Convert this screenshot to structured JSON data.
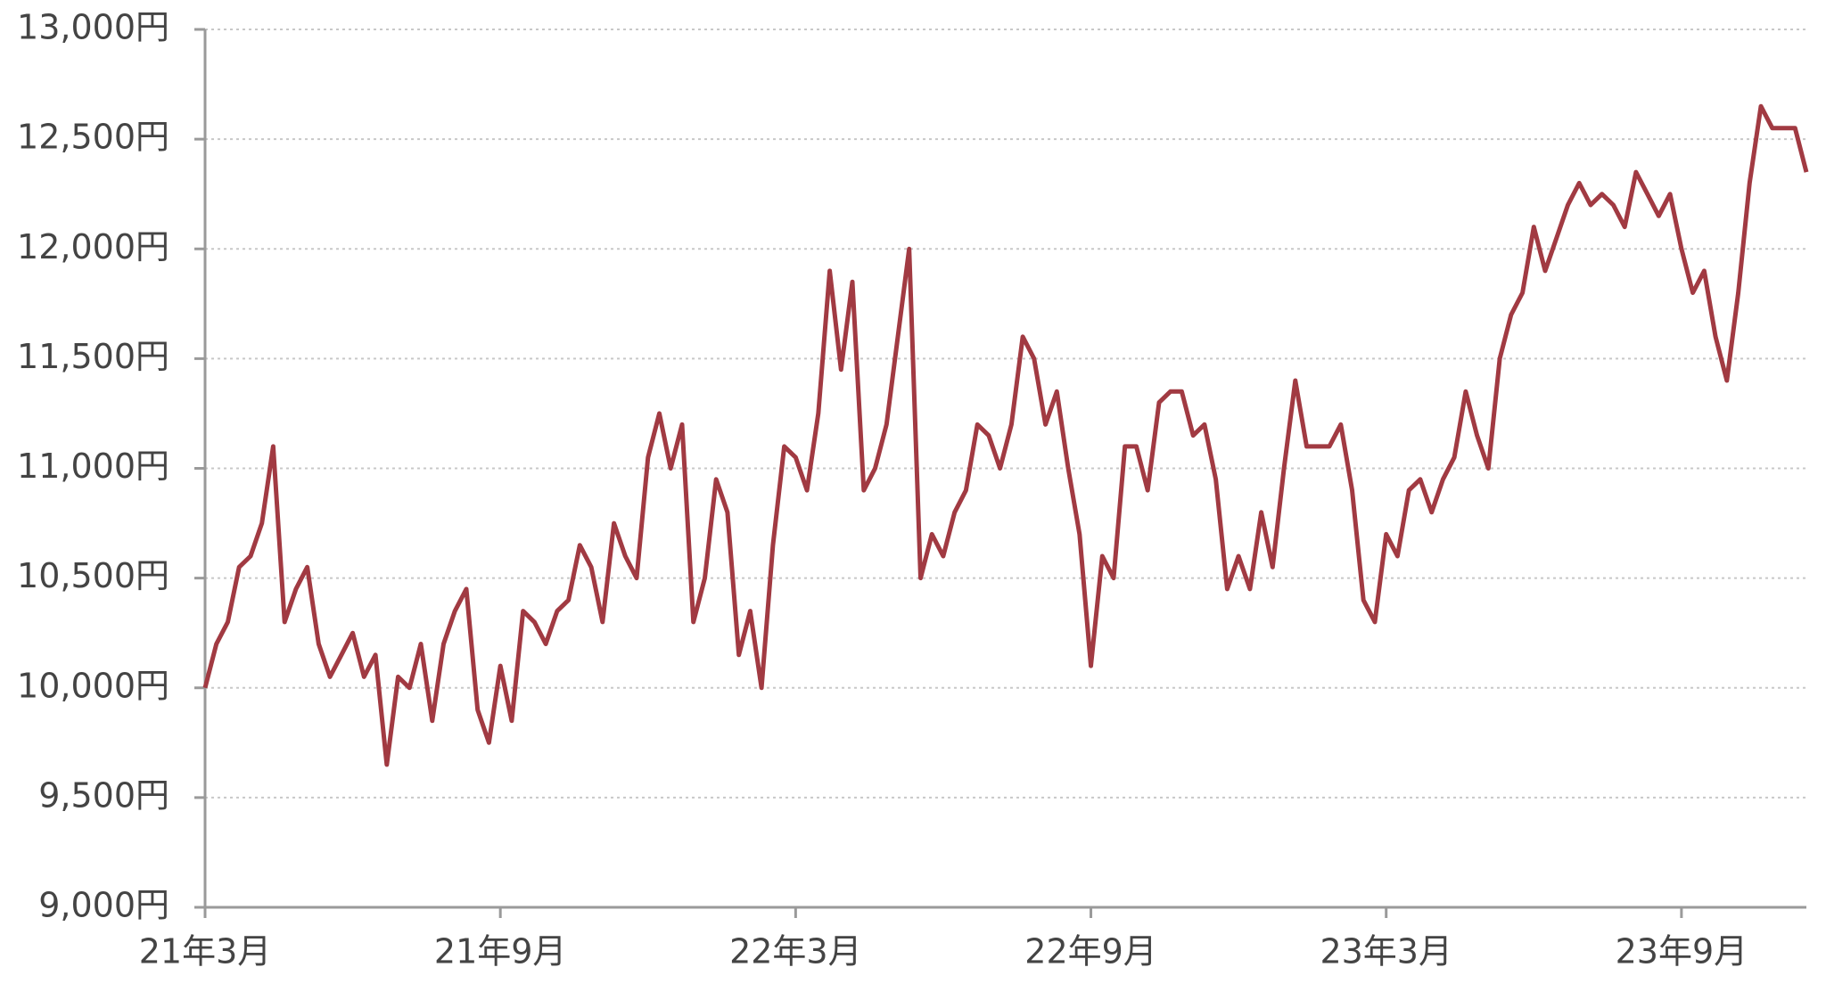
{
  "chart_data": {
    "type": "line",
    "categories": [
      "21年3月",
      null,
      null,
      null,
      null,
      null,
      null,
      null,
      null,
      null,
      null,
      null,
      null,
      null,
      null,
      null,
      null,
      null,
      null,
      null,
      null,
      null,
      null,
      null,
      null,
      null,
      "21年9月",
      null,
      null,
      null,
      null,
      null,
      null,
      null,
      null,
      null,
      null,
      null,
      null,
      null,
      null,
      null,
      null,
      null,
      null,
      null,
      null,
      null,
      null,
      null,
      null,
      null,
      "22年3月",
      null,
      null,
      null,
      null,
      null,
      null,
      null,
      null,
      null,
      null,
      null,
      null,
      null,
      null,
      null,
      null,
      null,
      null,
      null,
      null,
      null,
      null,
      null,
      null,
      null,
      "22年9月",
      null,
      null,
      null,
      null,
      null,
      null,
      null,
      null,
      null,
      null,
      null,
      null,
      null,
      null,
      null,
      null,
      null,
      null,
      null,
      null,
      null,
      null,
      null,
      null,
      null,
      "23年3月",
      null,
      null,
      null,
      null,
      null,
      null,
      null,
      null,
      null,
      null,
      null,
      null,
      null,
      null,
      null,
      null,
      null,
      null,
      null,
      null,
      null,
      null,
      null,
      null,
      null,
      "23年9月",
      null,
      null,
      null,
      null,
      null,
      null,
      null,
      null,
      null,
      null,
      null
    ],
    "series": [
      {
        "color": "#a13a42",
        "values": [
          10000,
          10200,
          10300,
          10550,
          10600,
          10750,
          11100,
          10300,
          10450,
          10550,
          10200,
          10050,
          10150,
          10250,
          10050,
          10150,
          9650,
          10050,
          10000,
          10200,
          9850,
          10200,
          10350,
          10450,
          9900,
          9750,
          10100,
          9850,
          10350,
          10300,
          10200,
          10350,
          10400,
          10650,
          10550,
          10300,
          10750,
          10600,
          10500,
          11050,
          11250,
          11000,
          11200,
          10300,
          10500,
          10950,
          10800,
          10150,
          10350,
          10000,
          10650,
          11100,
          11050,
          10900,
          11250,
          11900,
          11450,
          11850,
          10900,
          11000,
          11200,
          11600,
          12000,
          10500,
          10700,
          10600,
          10800,
          10900,
          11200,
          11150,
          11000,
          11200,
          11600,
          11500,
          11200,
          11350,
          11000,
          10700,
          10100,
          10600,
          10500,
          11100,
          11100,
          10900,
          11300,
          11350,
          11350,
          11150,
          11200,
          10950,
          10450,
          10600,
          10450,
          10800,
          10550,
          11000,
          11400,
          11100,
          11100,
          11100,
          11200,
          10900,
          10400,
          10300,
          10700,
          10600,
          10900,
          10950,
          10800,
          10950,
          11050,
          11350,
          11150,
          11000,
          11500,
          11700,
          11800,
          12100,
          11900,
          12050,
          12200,
          12300,
          12200,
          12250,
          12200,
          12100,
          12350,
          12250,
          12150,
          12250,
          12000,
          11800,
          11900,
          11600,
          11400,
          11800,
          12300,
          12650,
          12550,
          12550,
          12550,
          12350
        ]
      }
    ],
    "ylim": [
      9000,
      13000
    ],
    "yticks": [
      {
        "value": 9000,
        "label": "9,000円"
      },
      {
        "value": 9500,
        "label": "9,500円"
      },
      {
        "value": 10000,
        "label": "10,000円"
      },
      {
        "value": 10500,
        "label": "10,500円"
      },
      {
        "value": 11000,
        "label": "11,000円"
      },
      {
        "value": 11500,
        "label": "11,500円"
      },
      {
        "value": 12000,
        "label": "12,000円"
      },
      {
        "value": 12500,
        "label": "12,500円"
      },
      {
        "value": 13000,
        "label": "13,000円"
      }
    ],
    "grid": true
  }
}
